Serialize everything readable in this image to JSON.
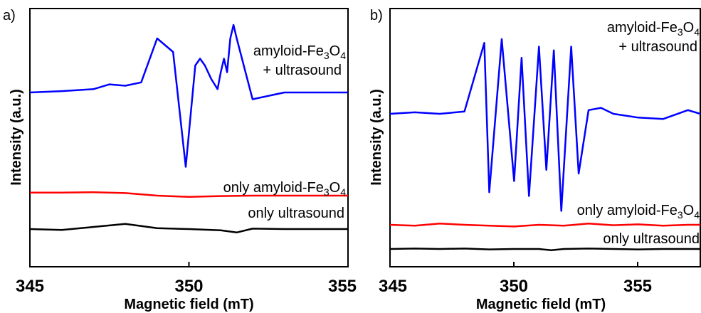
{
  "chart_data": [
    {
      "type": "line",
      "panel_label": "a)",
      "xlabel": "Magnetic field (mT)",
      "ylabel": "Intensity (a.u.)",
      "xlim": [
        345,
        355
      ],
      "xticks": [
        "345",
        "350",
        "355"
      ],
      "y_ticks_shown": false,
      "series": [
        {
          "label_main": "amyloid-Fe",
          "label_sub1": "3",
          "label_mid": "O",
          "label_sub2": "4",
          "label_line2": "+ ultrasound",
          "color": "#0000ff",
          "x": [
            345,
            346,
            347,
            347.5,
            348,
            348.5,
            349,
            349.5,
            349.9,
            350.2,
            350.35,
            350.5,
            350.7,
            350.9,
            351,
            351.1,
            351.2,
            351.3,
            351.4,
            351.5,
            352,
            353,
            354,
            355
          ],
          "y": [
            0,
            0.02,
            0.05,
            0.12,
            0.1,
            0.15,
            0.8,
            0.6,
            -1.1,
            0.4,
            0.5,
            0.4,
            0.2,
            0.05,
            0.3,
            0.5,
            0.3,
            0.8,
            1.0,
            0.8,
            -0.1,
            0.0,
            0.0,
            0
          ]
        },
        {
          "label_main": "only amyloid-Fe",
          "label_sub1": "3",
          "label_mid": "O",
          "label_sub2": "4",
          "color": "#ff0000",
          "x": [
            345,
            346,
            347,
            348,
            349,
            350,
            351,
            352,
            353,
            354,
            355
          ],
          "y": [
            0.02,
            0.02,
            0.03,
            0.01,
            -0.05,
            -0.08,
            -0.06,
            -0.05,
            -0.05,
            -0.05,
            -0.05
          ]
        },
        {
          "label_main": "only ultrasound",
          "color": "#000000",
          "x": [
            345,
            346,
            347,
            348,
            349,
            350,
            351,
            351.5,
            352,
            353,
            354,
            355
          ],
          "y": [
            0,
            -0.02,
            0.05,
            0.12,
            0.02,
            0.0,
            -0.03,
            -0.08,
            0.01,
            0.0,
            0.0,
            0
          ]
        }
      ]
    },
    {
      "type": "line",
      "panel_label": "b)",
      "xlabel": "Magnetic field (mT)",
      "ylabel": "Intensity (a.u.)",
      "xlim": [
        345,
        357.5
      ],
      "xticks": [
        "345",
        "350",
        "355"
      ],
      "y_ticks_shown": false,
      "series": [
        {
          "label_main": "amyloid-Fe",
          "label_sub1": "3",
          "label_mid": "O",
          "label_sub2": "4",
          "label_line2": "+ ultrasound",
          "color": "#0000ff",
          "x": [
            345,
            346,
            347,
            348,
            348.8,
            349,
            349.5,
            350,
            350.3,
            350.6,
            351,
            351.3,
            351.6,
            351.9,
            352.3,
            352.6,
            353,
            353.5,
            354,
            355,
            356,
            357,
            357.5
          ],
          "y": [
            0,
            0.02,
            0.0,
            0.03,
            0.95,
            -1.05,
            1.0,
            -0.9,
            0.75,
            -1.1,
            0.9,
            -0.75,
            0.85,
            -1.3,
            0.9,
            -0.8,
            0.05,
            0.08,
            0.0,
            -0.05,
            -0.07,
            0.05,
            0.0
          ]
        },
        {
          "label_main": "only amyloid-Fe",
          "label_sub1": "3",
          "label_mid": "O",
          "label_sub2": "4",
          "color": "#ff0000",
          "x": [
            345,
            346,
            347,
            348,
            349,
            350,
            351,
            352,
            353,
            354,
            355,
            356,
            357,
            357.5
          ],
          "y": [
            0,
            -0.02,
            0.03,
            0.0,
            -0.02,
            -0.04,
            0.0,
            -0.02,
            0.03,
            -0.01,
            0.01,
            -0.02,
            0.0,
            0
          ]
        },
        {
          "label_main": "only ultrasound",
          "color": "#000000",
          "x": [
            345,
            346,
            347,
            348,
            349,
            350,
            351,
            351.5,
            352,
            353,
            354,
            355,
            356,
            357,
            357.5
          ],
          "y": [
            0,
            0.01,
            0.0,
            0.01,
            -0.01,
            0.0,
            0.0,
            -0.03,
            0.0,
            0.01,
            0.0,
            -0.01,
            0.0,
            0.0,
            0
          ]
        }
      ]
    }
  ]
}
